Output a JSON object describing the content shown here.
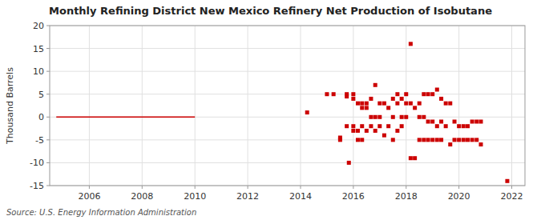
{
  "chart_data": {
    "type": "scatter",
    "title": "Monthly Refining District New Mexico Refinery Net Production of Isobutane",
    "ylabel": "Thousand Barrels",
    "source": "Source: U.S. Energy Information Administration",
    "xlim": [
      2004.5,
      2022.5
    ],
    "xticks": [
      2006,
      2008,
      2010,
      2012,
      2014,
      2016,
      2018,
      2020,
      2022
    ],
    "ylim": [
      -15,
      20
    ],
    "yticks": [
      -15,
      -10,
      -5,
      0,
      5,
      10,
      15,
      20
    ],
    "grid": true,
    "series": [
      {
        "type": "line",
        "color": "#cc0000",
        "x": [
          2004.75,
          2005.0,
          2005.25,
          2005.5,
          2005.75,
          2006.0,
          2006.25,
          2006.5,
          2006.75,
          2007.0,
          2007.25,
          2007.5,
          2007.75,
          2008.0,
          2008.25,
          2008.5,
          2008.75,
          2009.0,
          2009.25,
          2009.5,
          2009.75,
          2010.0
        ],
        "values": [
          0,
          0,
          0,
          0,
          0,
          0,
          0,
          0,
          0,
          0,
          0,
          0,
          0,
          0,
          0,
          0,
          0,
          0,
          0,
          0,
          0,
          0
        ]
      },
      {
        "type": "scatter",
        "color": "#cc0000",
        "marker": "square",
        "x": [
          2014.25,
          2015.0,
          2015.25,
          2015.5,
          2015.5,
          2015.75,
          2015.75,
          2015.75,
          2015.83,
          2016.0,
          2016.0,
          2016.0,
          2016.0,
          2016.17,
          2016.17,
          2016.17,
          2016.33,
          2016.33,
          2016.33,
          2016.33,
          2016.5,
          2016.5,
          2016.5,
          2016.67,
          2016.67,
          2016.67,
          2016.83,
          2016.83,
          2016.83,
          2017.0,
          2017.0,
          2017.0,
          2017.17,
          2017.17,
          2017.33,
          2017.33,
          2017.5,
          2017.5,
          2017.5,
          2017.67,
          2017.67,
          2017.67,
          2017.83,
          2017.83,
          2017.83,
          2018.0,
          2018.0,
          2018.0,
          2018.17,
          2018.17,
          2018.17,
          2018.33,
          2018.33,
          2018.5,
          2018.5,
          2018.5,
          2018.67,
          2018.67,
          2018.67,
          2018.83,
          2018.83,
          2018.83,
          2019.0,
          2019.0,
          2019.0,
          2019.17,
          2019.17,
          2019.17,
          2019.33,
          2019.33,
          2019.33,
          2019.5,
          2019.5,
          2019.67,
          2019.67,
          2019.83,
          2019.83,
          2020.0,
          2020.0,
          2020.17,
          2020.17,
          2020.33,
          2020.33,
          2020.5,
          2020.5,
          2020.67,
          2020.67,
          2020.83,
          2020.83,
          2021.83
        ],
        "values": [
          1,
          5,
          5,
          -4.5,
          -5,
          4.5,
          5,
          -2,
          -10,
          4,
          5,
          -2,
          -3,
          3,
          -3,
          -5,
          3,
          2,
          -2,
          -5,
          3,
          2,
          -3,
          4,
          0,
          -2,
          7,
          0,
          -3,
          3,
          0,
          -2,
          3,
          -4,
          2,
          -2,
          4,
          0,
          -5,
          5,
          3,
          -3,
          4,
          0,
          -2,
          5,
          3,
          0,
          16,
          3,
          -9,
          2,
          -9,
          3,
          0,
          -5,
          5,
          0,
          -5,
          5,
          -1,
          -5,
          5,
          -1,
          -5,
          6,
          -2,
          -5,
          4,
          -1,
          -5,
          3,
          -2,
          3,
          -6,
          -1,
          -5,
          -2,
          -5,
          -2,
          -5,
          -2,
          -5,
          -1,
          -5,
          -1,
          -5,
          -1,
          -6,
          -14
        ]
      }
    ]
  }
}
